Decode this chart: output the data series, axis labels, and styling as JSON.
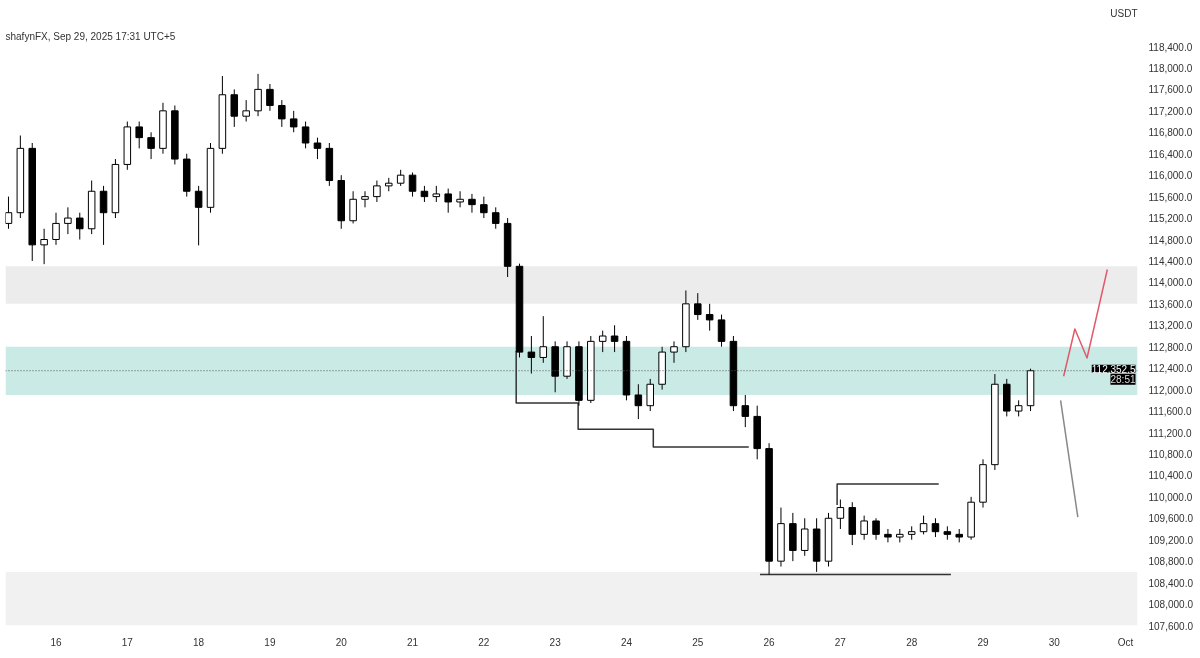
{
  "chart_data": {
    "type": "candlestick",
    "ylabel": "USDT",
    "annotations": [
      "shafynFX, Sep 29, 2025 17:31 UTC+5",
      {
        "text": "28:51",
        "x": "2025-10-01T04:00",
        "y": 112352.5
      }
    ],
    "x": [
      "2025-09-15T08:00",
      "2025-09-15T12:00",
      "2025-09-15T16:00",
      "2025-09-15T20:00",
      "2025-09-16T00:00",
      "2025-09-16T04:00",
      "2025-09-16T08:00",
      "2025-09-16T12:00",
      "2025-09-16T16:00",
      "2025-09-16T20:00",
      "2025-09-17T00:00",
      "2025-09-17T04:00",
      "2025-09-17T08:00",
      "2025-09-17T12:00",
      "2025-09-17T16:00",
      "2025-09-17T20:00",
      "2025-09-18T00:00",
      "2025-09-18T04:00",
      "2025-09-18T08:00",
      "2025-09-18T12:00",
      "2025-09-18T16:00",
      "2025-09-18T20:00",
      "2025-09-19T00:00",
      "2025-09-19T04:00",
      "2025-09-19T08:00",
      "2025-09-19T12:00",
      "2025-09-19T16:00",
      "2025-09-19T20:00",
      "2025-09-20T00:00",
      "2025-09-20T04:00",
      "2025-09-20T08:00",
      "2025-09-20T12:00",
      "2025-09-20T16:00",
      "2025-09-20T20:00",
      "2025-09-21T00:00",
      "2025-09-21T04:00",
      "2025-09-21T08:00",
      "2025-09-21T12:00",
      "2025-09-21T16:00",
      "2025-09-21T20:00",
      "2025-09-22T00:00",
      "2025-09-22T04:00",
      "2025-09-22T08:00",
      "2025-09-22T12:00",
      "2025-09-22T16:00",
      "2025-09-22T20:00",
      "2025-09-23T00:00",
      "2025-09-23T04:00",
      "2025-09-23T08:00",
      "2025-09-23T12:00",
      "2025-09-23T16:00",
      "2025-09-23T20:00",
      "2025-09-24T00:00",
      "2025-09-24T04:00",
      "2025-09-24T08:00",
      "2025-09-24T12:00",
      "2025-09-24T16:00",
      "2025-09-24T20:00",
      "2025-09-25T00:00",
      "2025-09-25T04:00",
      "2025-09-25T08:00",
      "2025-09-25T12:00",
      "2025-09-25T16:00",
      "2025-09-25T20:00",
      "2025-09-26T00:00",
      "2025-09-26T04:00",
      "2025-09-26T08:00",
      "2025-09-26T12:00",
      "2025-09-26T16:00",
      "2025-09-26T20:00",
      "2025-09-27T00:00",
      "2025-09-27T04:00",
      "2025-09-27T08:00",
      "2025-09-27T12:00",
      "2025-09-27T16:00",
      "2025-09-27T20:00",
      "2025-09-28T00:00",
      "2025-09-28T04:00",
      "2025-09-28T08:00",
      "2025-09-28T12:00",
      "2025-09-28T16:00",
      "2025-09-28T20:00",
      "2025-09-29T00:00",
      "2025-09-29T04:00",
      "2025-09-29T08:00",
      "2025-09-29T12:00",
      "2025-09-29T16:00"
    ],
    "ohlc": [
      [
        115100,
        115600,
        115000,
        115300
      ],
      [
        115300,
        116740,
        115200,
        116500
      ],
      [
        116500,
        116600,
        114400,
        114700
      ],
      [
        114700,
        115000,
        114340,
        114800
      ],
      [
        114800,
        115300,
        114700,
        115100
      ],
      [
        115100,
        115400,
        114900,
        115200
      ],
      [
        115200,
        115300,
        114800,
        115000
      ],
      [
        115000,
        115900,
        114900,
        115700
      ],
      [
        115700,
        115800,
        114700,
        115300
      ],
      [
        115300,
        116300,
        115200,
        116200
      ],
      [
        116200,
        117000,
        116100,
        116900
      ],
      [
        116900,
        117000,
        116500,
        116700
      ],
      [
        116700,
        116800,
        116300,
        116500
      ],
      [
        116500,
        117350,
        116400,
        117200
      ],
      [
        117200,
        117300,
        116200,
        116300
      ],
      [
        116300,
        116400,
        115600,
        115700
      ],
      [
        115700,
        115800,
        114690,
        115400
      ],
      [
        115400,
        116600,
        115300,
        116500
      ],
      [
        116500,
        117850,
        116400,
        117500
      ],
      [
        117500,
        117600,
        116900,
        117100
      ],
      [
        117100,
        117400,
        117000,
        117200
      ],
      [
        117200,
        117890,
        117100,
        117600
      ],
      [
        117600,
        117700,
        117200,
        117300
      ],
      [
        117300,
        117400,
        116900,
        117050
      ],
      [
        117050,
        117200,
        116800,
        116900
      ],
      [
        116900,
        117000,
        116500,
        116600
      ],
      [
        116600,
        116700,
        116300,
        116500
      ],
      [
        116500,
        116600,
        115800,
        115900
      ],
      [
        115900,
        116000,
        115000,
        115150
      ],
      [
        115150,
        115700,
        115100,
        115550
      ],
      [
        115550,
        115700,
        115400,
        115600
      ],
      [
        115600,
        115900,
        115500,
        115800
      ],
      [
        115800,
        115950,
        115700,
        115850
      ],
      [
        115850,
        116100,
        115800,
        116000
      ],
      [
        116000,
        116050,
        115600,
        115700
      ],
      [
        115700,
        115800,
        115500,
        115600
      ],
      [
        115600,
        115800,
        115500,
        115650
      ],
      [
        115650,
        115750,
        115300,
        115500
      ],
      [
        115500,
        115700,
        115400,
        115550
      ],
      [
        115550,
        115650,
        115300,
        115450
      ],
      [
        115450,
        115600,
        115200,
        115300
      ],
      [
        115300,
        115400,
        115000,
        115100
      ],
      [
        115100,
        115200,
        114100,
        114300
      ],
      [
        114300,
        114350,
        112600,
        112700
      ],
      [
        112700,
        113000,
        112300,
        112600
      ],
      [
        112600,
        113370,
        112500,
        112800
      ],
      [
        112800,
        112900,
        111950,
        112250
      ],
      [
        112250,
        112900,
        112200,
        112800
      ],
      [
        112800,
        112900,
        111700,
        111800
      ],
      [
        111800,
        113000,
        111750,
        112900
      ],
      [
        112900,
        113100,
        112700,
        113000
      ],
      [
        113000,
        113200,
        112700,
        112900
      ],
      [
        112900,
        113000,
        111800,
        111900
      ],
      [
        111900,
        112100,
        111450,
        111700
      ],
      [
        111700,
        112200,
        111600,
        112100
      ],
      [
        112100,
        112800,
        112000,
        112700
      ],
      [
        112700,
        112900,
        112500,
        112800
      ],
      [
        112800,
        113850,
        112700,
        113600
      ],
      [
        113600,
        113800,
        113300,
        113400
      ],
      [
        113400,
        113600,
        113100,
        113300
      ],
      [
        113300,
        113400,
        112800,
        112900
      ],
      [
        112900,
        113000,
        111600,
        111700
      ],
      [
        111700,
        111900,
        111300,
        111500
      ],
      [
        111500,
        111700,
        110700,
        110900
      ],
      [
        110900,
        111000,
        108550,
        108800
      ],
      [
        108800,
        109800,
        108700,
        109500
      ],
      [
        109500,
        109700,
        108800,
        109000
      ],
      [
        109000,
        109600,
        108900,
        109400
      ],
      [
        109400,
        109600,
        108600,
        108800
      ],
      [
        108800,
        109700,
        108700,
        109600
      ],
      [
        109600,
        109950,
        109400,
        109800
      ],
      [
        109800,
        109900,
        109100,
        109300
      ],
      [
        109300,
        109650,
        109200,
        109550
      ],
      [
        109550,
        109600,
        109200,
        109300
      ],
      [
        109300,
        109400,
        109150,
        109250
      ],
      [
        109250,
        109400,
        109150,
        109300
      ],
      [
        109300,
        109450,
        109200,
        109350
      ],
      [
        109350,
        109650,
        109300,
        109500
      ],
      [
        109500,
        109600,
        109250,
        109350
      ],
      [
        109350,
        109450,
        109200,
        109300
      ],
      [
        109300,
        109400,
        109150,
        109250
      ],
      [
        109250,
        110000,
        109200,
        109900
      ],
      [
        109900,
        110700,
        109800,
        110600
      ],
      [
        110600,
        112290,
        110500,
        112100
      ],
      [
        112100,
        112200,
        111500,
        111600
      ],
      [
        111600,
        111800,
        111500,
        111700
      ],
      [
        111700,
        112390,
        111600,
        112352.5
      ]
    ],
    "series": [
      {
        "type": "line",
        "color": "#333333",
        "x": [
          "2025-09-22T10:53",
          "2025-09-22T10:53",
          "2025-09-23T07:44",
          "2025-09-23T07:44",
          "2025-09-24T09:02",
          "2025-09-24T09:02",
          "2025-09-25T17:10"
        ],
        "values": [
          112720,
          111750,
          111750,
          111260,
          111260,
          110930,
          110930
        ]
      },
      {
        "type": "line",
        "color": "#333333",
        "x": [
          "2025-09-26T22:54",
          "2025-09-26T22:54",
          "2025-09-28T09:06"
        ],
        "values": [
          109850,
          110240,
          110240
        ]
      },
      {
        "type": "line",
        "color": "#333333",
        "x": [
          "2025-09-25T20:56",
          "2025-09-28T13:12"
        ],
        "values": [
          108550,
          108550
        ]
      },
      {
        "type": "line",
        "color": "#e05a6a",
        "x": [
          "2025-09-30T03:09",
          "2025-09-30T06:55",
          "2025-09-30T11:01",
          "2025-09-30T17:51"
        ],
        "values": [
          112250,
          113130,
          112590,
          114240
        ]
      },
      {
        "type": "line",
        "color": "#888888",
        "x": [
          "2025-09-30T02:07",
          "2025-09-30T07:55"
        ],
        "values": [
          111800,
          109620
        ]
      }
    ],
    "ref_lines": [
      {
        "axis": "y",
        "value": 112352.5,
        "label": "112,352.5",
        "color": "#555555",
        "line_style": "dotted"
      }
    ],
    "bands": [
      {
        "axis": "y",
        "from": 113600,
        "to": 114300,
        "color": "#e6e6e6"
      },
      {
        "axis": "y",
        "from": 107600,
        "to": 108600,
        "color": "#ececec"
      },
      {
        "axis": "y",
        "from": 111900,
        "to": 112800,
        "color": "#b8e3dd"
      }
    ],
    "xlim": [
      "2025-09-15T07:00",
      "2025-10-01T04:00"
    ],
    "xticks": [
      {
        "value": "2025-09-16",
        "label": "16"
      },
      {
        "value": "2025-09-17",
        "label": "17"
      },
      {
        "value": "2025-09-18",
        "label": "18"
      },
      {
        "value": "2025-09-19",
        "label": "19"
      },
      {
        "value": "2025-09-20",
        "label": "20"
      },
      {
        "value": "2025-09-21",
        "label": "21"
      },
      {
        "value": "2025-09-22",
        "label": "22"
      },
      {
        "value": "2025-09-23",
        "label": "23"
      },
      {
        "value": "2025-09-24",
        "label": "24"
      },
      {
        "value": "2025-09-25",
        "label": "25"
      },
      {
        "value": "2025-09-26",
        "label": "26"
      },
      {
        "value": "2025-09-27",
        "label": "27"
      },
      {
        "value": "2025-09-28",
        "label": "28"
      },
      {
        "value": "2025-09-29",
        "label": "29"
      },
      {
        "value": "2025-09-30",
        "label": "30"
      },
      {
        "value": "2025-10-01",
        "label": "Oct"
      }
    ],
    "ylim": [
      107600,
      118400
    ],
    "yticks": [
      {
        "value": 107600,
        "label": "107,600.0"
      },
      {
        "value": 108000,
        "label": "108,000.0"
      },
      {
        "value": 108400,
        "label": "108,400.0"
      },
      {
        "value": 108800,
        "label": "108,800.0"
      },
      {
        "value": 109200,
        "label": "109,200.0"
      },
      {
        "value": 109600,
        "label": "109,600.0"
      },
      {
        "value": 110000,
        "label": "110,000.0"
      },
      {
        "value": 110400,
        "label": "110,400.0"
      },
      {
        "value": 110800,
        "label": "110,800.0"
      },
      {
        "value": 111200,
        "label": "111,200.0"
      },
      {
        "value": 111600,
        "label": "111,600.0"
      },
      {
        "value": 112000,
        "label": "112,000.0"
      },
      {
        "value": 112400,
        "label": "112,400.0"
      },
      {
        "value": 112800,
        "label": "112,800.0"
      },
      {
        "value": 113200,
        "label": "113,200.0"
      },
      {
        "value": 113600,
        "label": "113,600.0"
      },
      {
        "value": 114000,
        "label": "114,000.0"
      },
      {
        "value": 114400,
        "label": "114,400.0"
      },
      {
        "value": 114800,
        "label": "114,800.0"
      },
      {
        "value": 115200,
        "label": "115,200.0"
      },
      {
        "value": 115600,
        "label": "115,600.0"
      },
      {
        "value": 116000,
        "label": "116,000.0"
      },
      {
        "value": 116400,
        "label": "116,400.0"
      },
      {
        "value": 116800,
        "label": "116,800.0"
      },
      {
        "value": 117200,
        "label": "117,200.0"
      },
      {
        "value": 117600,
        "label": "117,600.0"
      },
      {
        "value": 118000,
        "label": "118,000.0"
      },
      {
        "value": 118400,
        "label": "118,400.0"
      }
    ],
    "grid": false
  }
}
